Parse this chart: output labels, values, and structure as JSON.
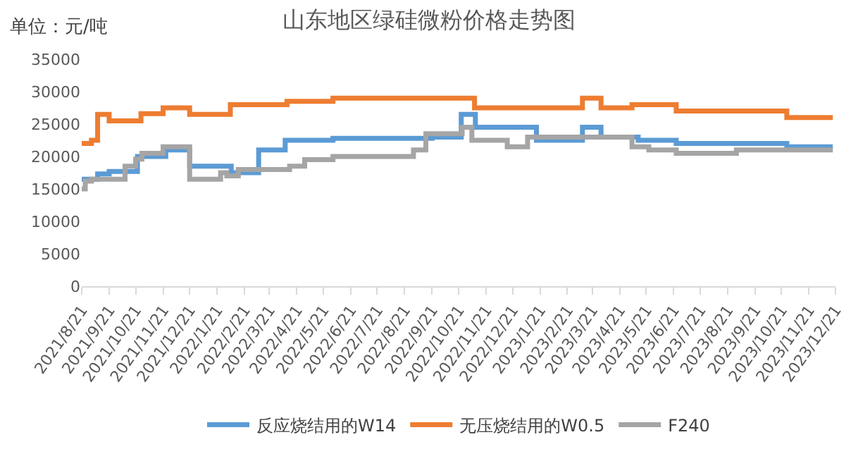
{
  "chart_data": {
    "type": "step",
    "title": "山东地区绿硅微粉价格走势图",
    "annotations": [
      "单位：元/吨"
    ],
    "xlim": [
      "2021-08-21",
      "2023-12-21"
    ],
    "xticks": [
      {
        "value": "2021-08-21",
        "label": "2021/8/21"
      },
      {
        "value": "2021-09-21",
        "label": "2021/9/21"
      },
      {
        "value": "2021-10-21",
        "label": "2021/10/21"
      },
      {
        "value": "2021-11-21",
        "label": "2021/11/21"
      },
      {
        "value": "2021-12-21",
        "label": "2021/12/21"
      },
      {
        "value": "2022-01-21",
        "label": "2022/1/21"
      },
      {
        "value": "2022-02-21",
        "label": "2022/2/21"
      },
      {
        "value": "2022-03-21",
        "label": "2022/3/21"
      },
      {
        "value": "2022-04-21",
        "label": "2022/4/21"
      },
      {
        "value": "2022-05-21",
        "label": "2022/5/21"
      },
      {
        "value": "2022-06-21",
        "label": "2022/6/21"
      },
      {
        "value": "2022-07-21",
        "label": "2022/7/21"
      },
      {
        "value": "2022-08-21",
        "label": "2022/8/21"
      },
      {
        "value": "2022-09-21",
        "label": "2022/9/21"
      },
      {
        "value": "2022-10-21",
        "label": "2022/10/21"
      },
      {
        "value": "2022-11-21",
        "label": "2022/11/21"
      },
      {
        "value": "2022-12-21",
        "label": "2022/12/21"
      },
      {
        "value": "2023-01-21",
        "label": "2023/1/21"
      },
      {
        "value": "2023-02-21",
        "label": "2023/2/21"
      },
      {
        "value": "2023-03-21",
        "label": "2023/3/21"
      },
      {
        "value": "2023-04-21",
        "label": "2023/4/21"
      },
      {
        "value": "2023-05-21",
        "label": "2023/5/21"
      },
      {
        "value": "2023-06-21",
        "label": "2023/6/21"
      },
      {
        "value": "2023-07-21",
        "label": "2023/7/21"
      },
      {
        "value": "2023-08-21",
        "label": "2023/8/21"
      },
      {
        "value": "2023-09-21",
        "label": "2023/9/21"
      },
      {
        "value": "2023-10-21",
        "label": "2023/10/21"
      },
      {
        "value": "2023-11-21",
        "label": "2023/11/21"
      },
      {
        "value": "2023-12-21",
        "label": "2023/12/21"
      }
    ],
    "ylim": [
      0,
      35000
    ],
    "yticks": [
      0,
      5000,
      10000,
      15000,
      20000,
      25000,
      30000,
      35000
    ],
    "grid": false,
    "legend": "bottom",
    "marker": "none",
    "line_style": "solid",
    "series": [
      {
        "name": "反应烧结用的W14",
        "color": "#5b9bd5",
        "x": [
          "2021-08-21",
          "2021-09-08",
          "2021-09-21",
          "2021-10-23",
          "2021-11-24",
          "2021-12-21",
          "2022-02-06",
          "2022-03-09",
          "2022-04-08",
          "2022-06-01",
          "2022-09-21",
          "2022-10-24",
          "2022-11-09",
          "2023-01-17",
          "2023-03-10",
          "2023-03-31",
          "2023-05-12",
          "2023-06-24",
          "2023-10-27",
          "2023-12-18"
        ],
        "values": [
          16500,
          17300,
          17700,
          20000,
          21000,
          18500,
          17500,
          21000,
          22500,
          22800,
          23000,
          26500,
          24500,
          22500,
          24500,
          23000,
          22500,
          22000,
          21500,
          21500
        ]
      },
      {
        "name": "无压烧结用的W0.5",
        "color": "#ed7d31",
        "x": [
          "2021-08-21",
          "2021-09-01",
          "2021-09-08",
          "2021-09-21",
          "2021-10-27",
          "2021-11-21",
          "2021-12-21",
          "2022-02-05",
          "2022-04-10",
          "2022-06-01",
          "2022-11-08",
          "2023-03-10",
          "2023-03-31",
          "2023-05-05",
          "2023-06-24",
          "2023-10-27",
          "2023-12-18"
        ],
        "values": [
          22000,
          22500,
          26500,
          25500,
          26600,
          27500,
          26500,
          28000,
          28500,
          29000,
          27500,
          29000,
          27500,
          28000,
          27000,
          26000,
          26000
        ]
      },
      {
        "name": "F240",
        "color": "#a5a5a5",
        "x": [
          "2021-08-21",
          "2021-08-25",
          "2021-09-01",
          "2021-10-09",
          "2021-10-21",
          "2021-10-28",
          "2021-11-21",
          "2021-12-21",
          "2022-01-25",
          "2022-02-01",
          "2022-02-14",
          "2022-04-13",
          "2022-04-30",
          "2022-06-01",
          "2022-08-31",
          "2022-09-14",
          "2022-10-25",
          "2022-11-05",
          "2022-12-15",
          "2023-01-07",
          "2023-05-05",
          "2023-05-24",
          "2023-06-24",
          "2023-08-31",
          "2023-12-18"
        ],
        "values": [
          15000,
          16200,
          16500,
          18500,
          19600,
          20500,
          21500,
          16500,
          17500,
          17000,
          18000,
          18500,
          19500,
          20000,
          21000,
          23500,
          24500,
          22500,
          21500,
          23000,
          21500,
          21000,
          20500,
          21000,
          21000
        ]
      }
    ]
  }
}
